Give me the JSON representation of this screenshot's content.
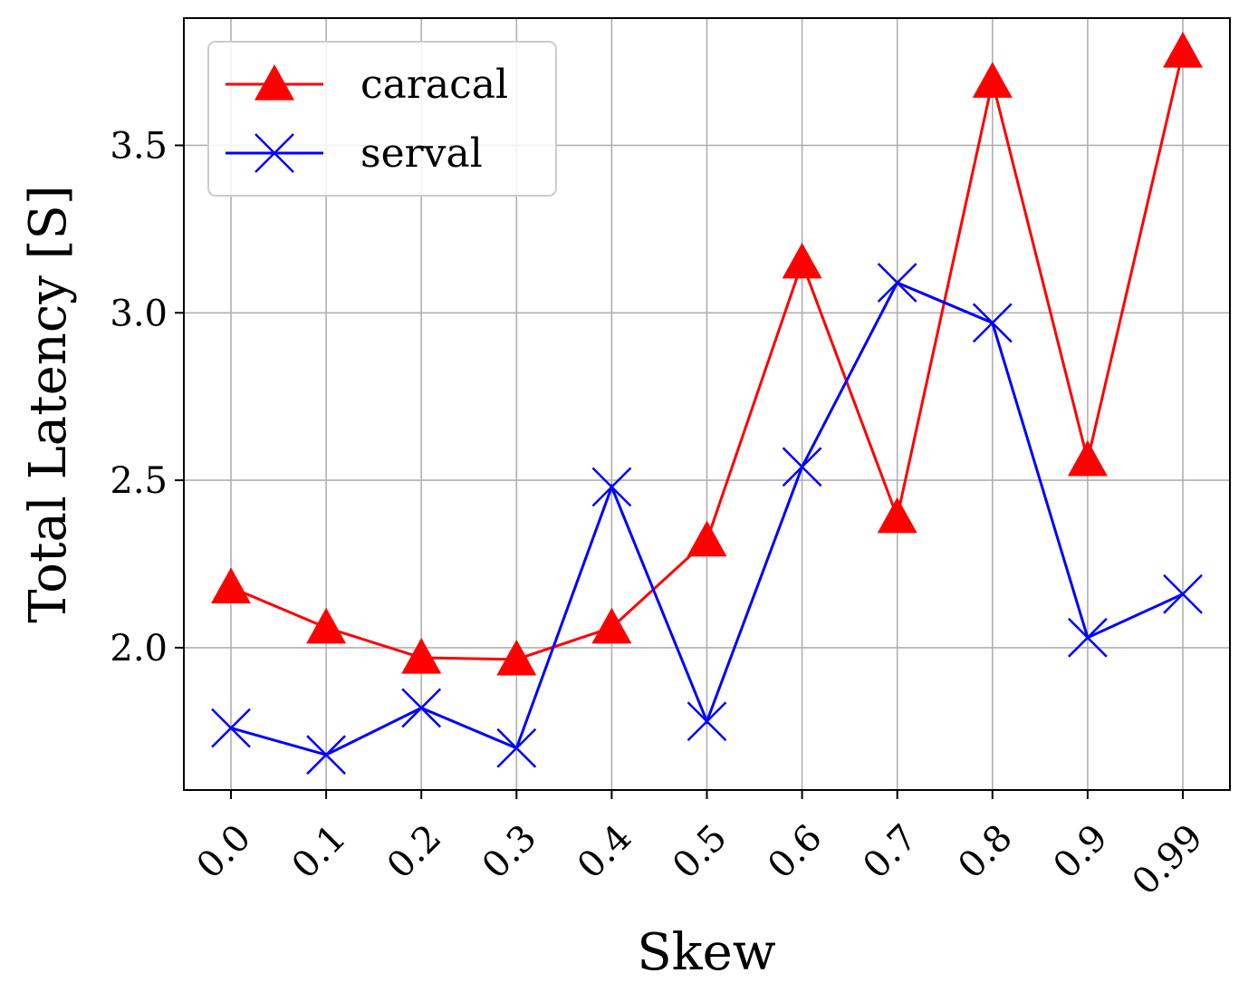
{
  "chart_data": {
    "type": "line",
    "xlabel": "Skew",
    "ylabel": "Total Latency [S]",
    "categories": [
      "0.0",
      "0.1",
      "0.2",
      "0.3",
      "0.4",
      "0.5",
      "0.6",
      "0.7",
      "0.8",
      "0.9",
      "0.99"
    ],
    "ylim": [
      1.575,
      3.88
    ],
    "yticks": [
      "2.0",
      "2.5",
      "3.0",
      "3.5"
    ],
    "grid": true,
    "legend_position": "top-left",
    "series": [
      {
        "name": "caracal",
        "color": "#ff0000",
        "marker": "triangle",
        "values": [
          2.18,
          2.06,
          1.97,
          1.965,
          2.06,
          2.32,
          3.15,
          2.39,
          3.69,
          2.56,
          3.78
        ]
      },
      {
        "name": "serval",
        "color": "#0000ff",
        "marker": "x",
        "values": [
          1.76,
          1.68,
          1.82,
          1.7,
          2.48,
          1.78,
          2.54,
          3.09,
          2.97,
          2.03,
          2.16
        ]
      }
    ]
  }
}
